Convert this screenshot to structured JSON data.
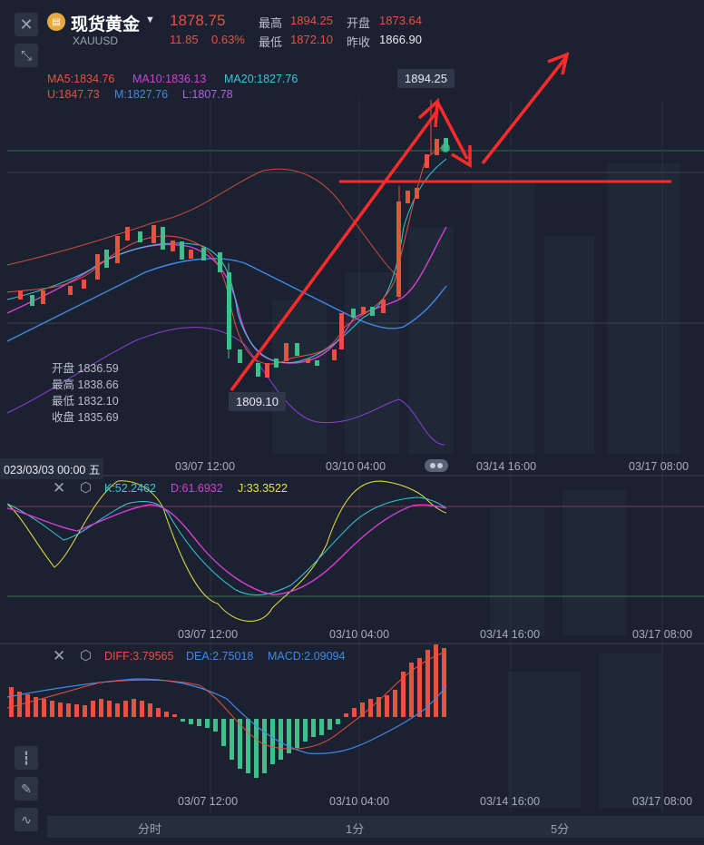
{
  "header": {
    "title": "现货黄金",
    "symbol": "XAUUSD",
    "price": "1878.75",
    "change": "11.85",
    "change_pct": "0.63%",
    "high_label": "最高",
    "high_value": "1894.25",
    "low_label": "最低",
    "low_value": "1872.10",
    "open_label": "开盘",
    "open_value": "1873.64",
    "prev_close_label": "昨收",
    "prev_close_value": "1866.90"
  },
  "indicators": {
    "ma5": "MA5:1834.76",
    "ma10": "MA10:1836.13",
    "ma20": "MA20:1827.76",
    "upper": "U:1847.73",
    "mid": "M:1827.76",
    "lower": "L:1807.78"
  },
  "main_chart": {
    "high_badge": "1894.25",
    "low_badge": "1809.10",
    "ohlc": {
      "open_label": "开盘",
      "open": "1836.59",
      "high_label": "最高",
      "high": "1838.66",
      "low_label": "最低",
      "low": "1832.10",
      "close_label": "收盘",
      "close": "1835.69"
    },
    "cursor_time": "023/03/03 00:00 五",
    "x_ticks": [
      "03/07 12:00",
      "03/10 04:00",
      "03/14 16:00",
      "03/17 08:00"
    ]
  },
  "kdj": {
    "k": "K:52.2462",
    "d": "D:61.6932",
    "j": "J:33.3522",
    "x_ticks": [
      "03/07 12:00",
      "03/10 04:00",
      "03/14 16:00",
      "03/17 08:00"
    ]
  },
  "macd": {
    "diff": "DIFF:3.79565",
    "dea": "DEA:2.75018",
    "macd": "MACD:2.09094",
    "x_ticks": [
      "03/07 12:00",
      "03/10 04:00",
      "03/14 16:00",
      "03/17 08:00"
    ]
  },
  "bottom_tabs": [
    "分时",
    "1分",
    "5分"
  ],
  "colors": {
    "up": "#e8503f",
    "down": "#3fbf8a",
    "ma5": "#e8503f",
    "ma10": "#d63fd6",
    "ma20": "#35c9d9",
    "boll_mid": "#3f8ae8",
    "annotation": "#ff2b2b",
    "kdj_j": "#e8e23f"
  }
}
